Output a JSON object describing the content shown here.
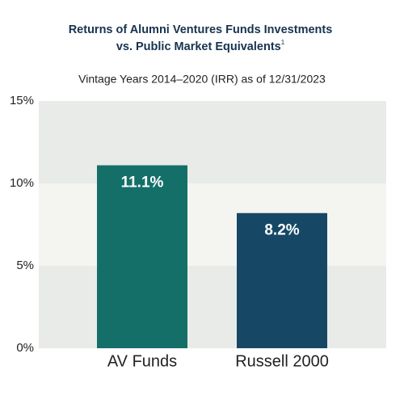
{
  "chart_data": {
    "type": "bar",
    "title": [
      "Returns of Alumni Ventures Funds Investments",
      "vs. Public Market Equivalents"
    ],
    "title_footnote": "1",
    "subtitle": "Vintage Years 2014–2020 (IRR) as of 12/31/2023",
    "categories": [
      "AV Funds",
      "Russell 2000"
    ],
    "values": [
      11.1,
      8.2
    ],
    "value_labels": [
      "11.1%",
      "8.2%"
    ],
    "colors": [
      "#146f69",
      "#164866"
    ],
    "ylim": [
      0,
      15
    ],
    "yticks": [
      {
        "value": 0,
        "label": "0%"
      },
      {
        "value": 5,
        "label": "5%"
      },
      {
        "value": 10,
        "label": "10%"
      },
      {
        "value": 15,
        "label": "15%"
      }
    ]
  }
}
